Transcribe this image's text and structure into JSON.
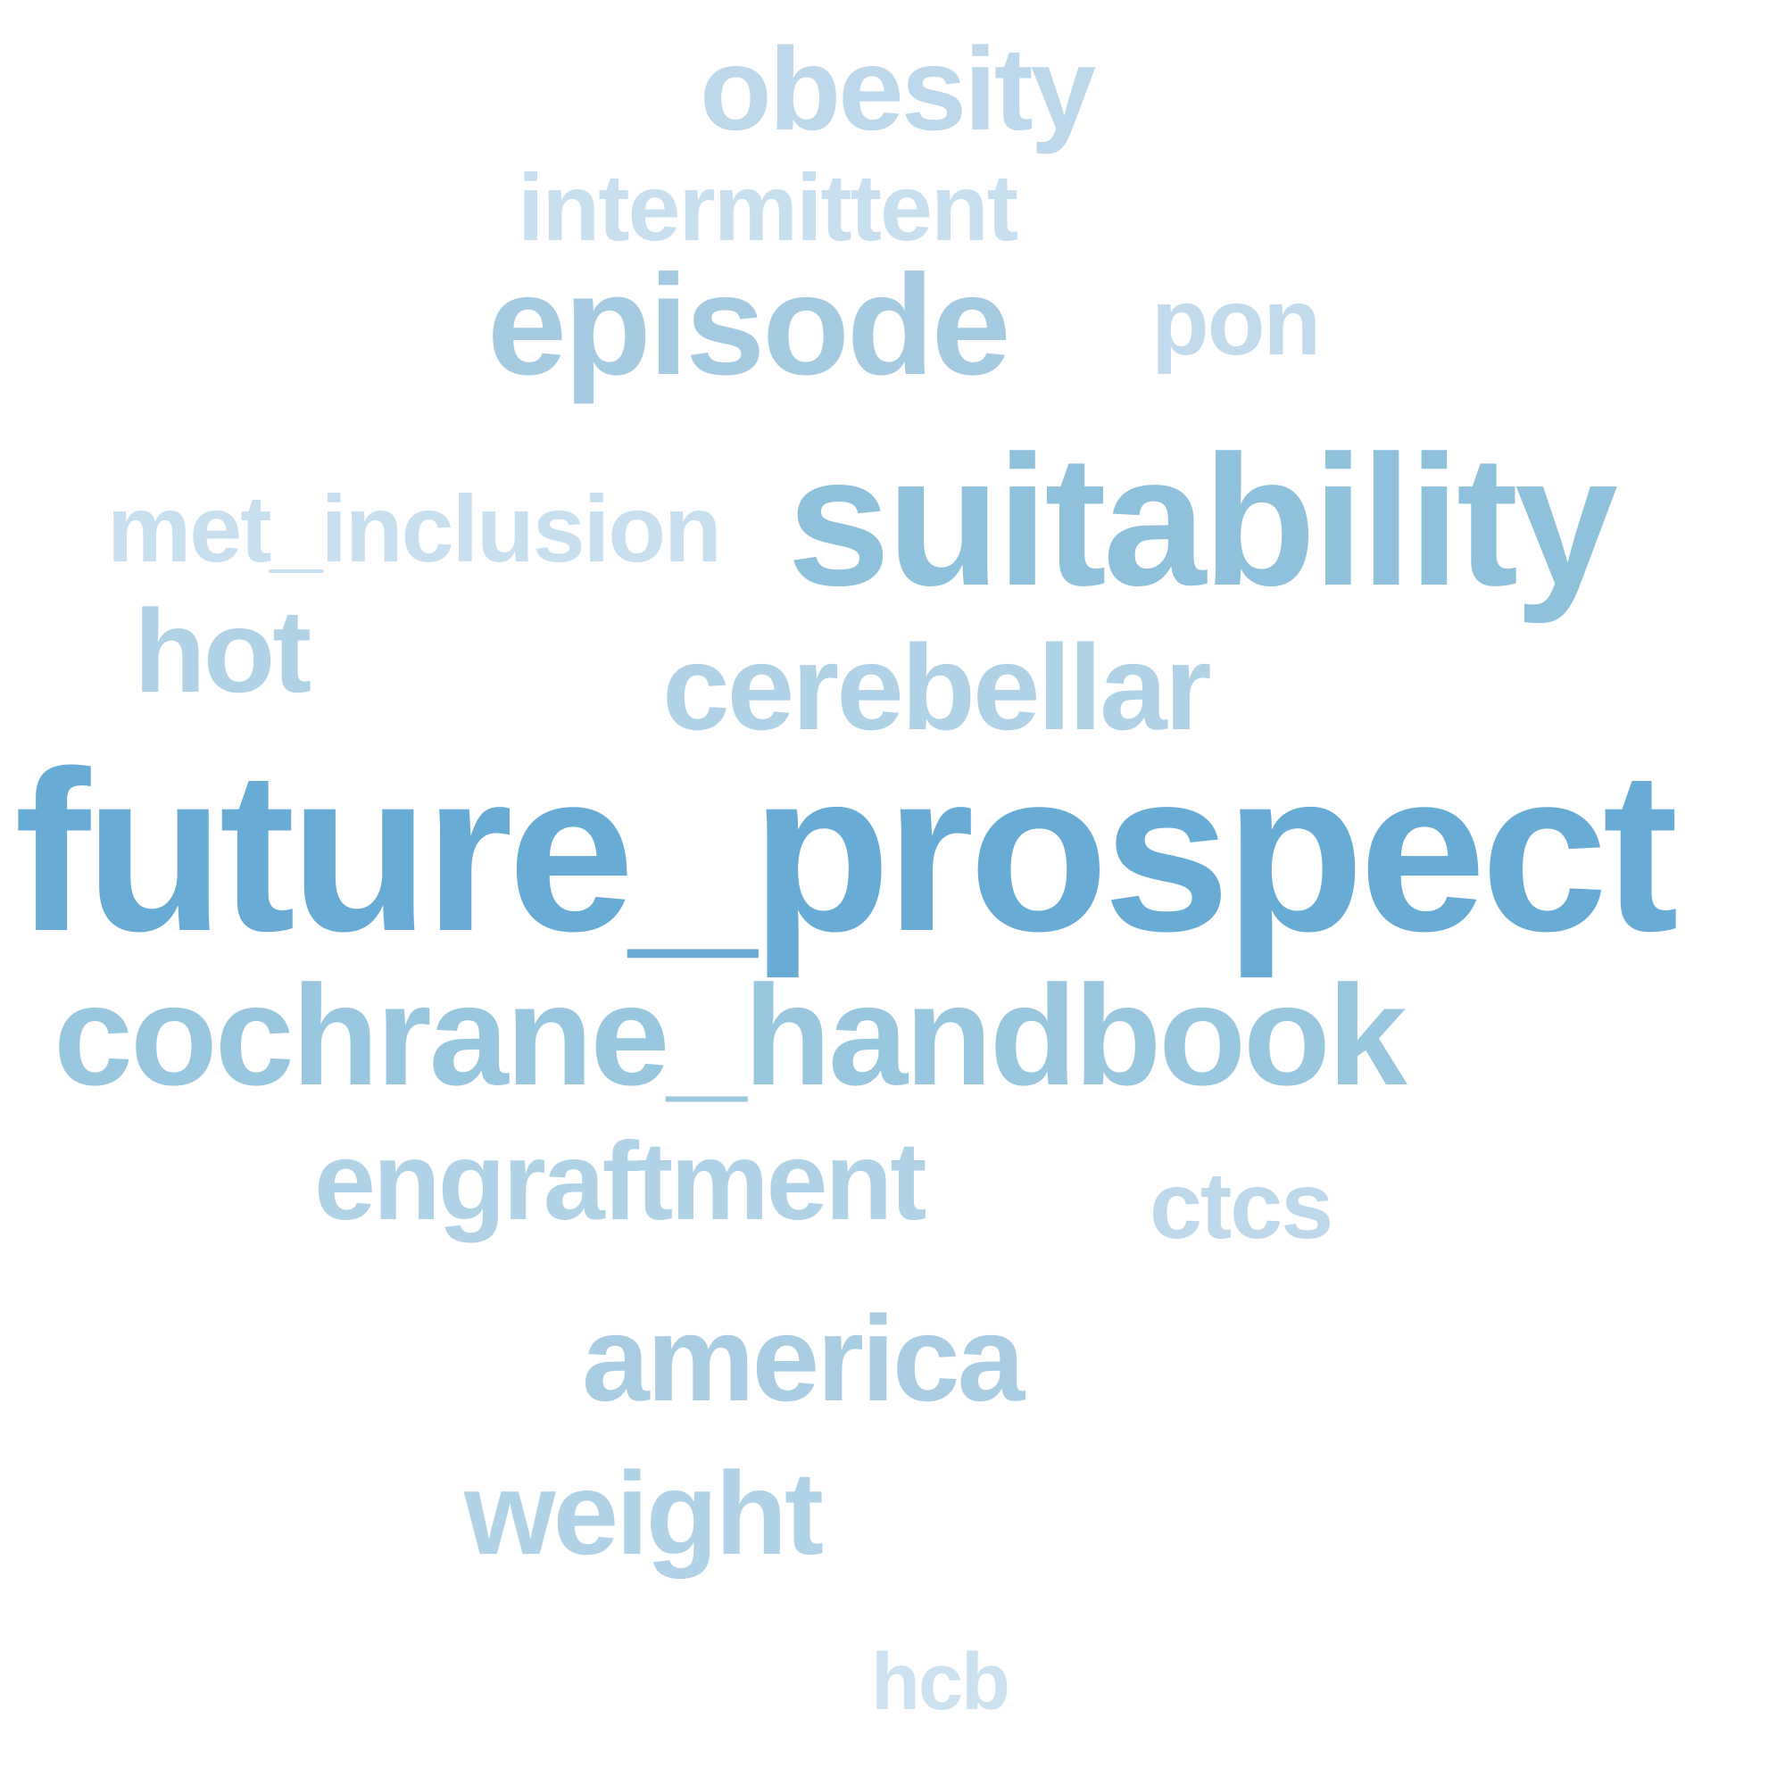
{
  "cloud": {
    "words": [
      {
        "text": "future_prospect",
        "color": "#68abd4"
      },
      {
        "text": "suitability",
        "color": "#8fc1dc"
      },
      {
        "text": "cochrane_handbook",
        "color": "#9ac7e0"
      },
      {
        "text": "episode",
        "color": "#a4cbe1"
      },
      {
        "text": "cerebellar",
        "color": "#b0d2e6"
      },
      {
        "text": "america",
        "color": "#a9cde2"
      },
      {
        "text": "engraftment",
        "color": "#b0d2e6"
      },
      {
        "text": "obesity",
        "color": "#bdd8ea"
      },
      {
        "text": "weight",
        "color": "#b0d2e6"
      },
      {
        "text": "hot",
        "color": "#b0d2e6"
      },
      {
        "text": "pon",
        "color": "#c2dbec"
      },
      {
        "text": "ctcs",
        "color": "#bdd8ea"
      },
      {
        "text": "intermittent",
        "color": "#c8dff0"
      },
      {
        "text": "met_inclusion",
        "color": "#c8dff0"
      },
      {
        "text": "hcb",
        "color": "#cde2f1"
      }
    ]
  }
}
